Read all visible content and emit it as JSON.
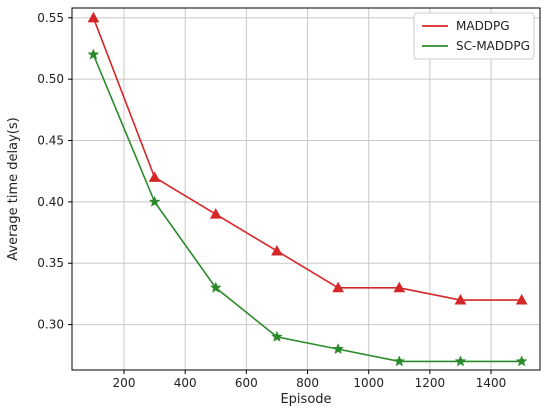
{
  "chart_data": {
    "type": "line",
    "xlabel": "Episode",
    "ylabel": "Average time delay(s)",
    "xlim": [
      30,
      1560
    ],
    "ylim": [
      0.263,
      0.558
    ],
    "xticks": [
      200,
      400,
      600,
      800,
      1000,
      1200,
      1400
    ],
    "yticks": [
      0.3,
      0.35,
      0.4,
      0.45,
      0.5,
      0.55
    ],
    "xtick_labels": [
      "200",
      "400",
      "600",
      "800",
      "1000",
      "1200",
      "1400"
    ],
    "ytick_labels": [
      "0.30",
      "0.35",
      "0.40",
      "0.45",
      "0.50",
      "0.55"
    ],
    "grid": true,
    "legend_position": "top-right",
    "x": [
      100,
      300,
      500,
      700,
      900,
      1100,
      1300,
      1500
    ],
    "series": [
      {
        "name": "MADDPG",
        "color": "#d62728",
        "marker": "triangle",
        "values": [
          0.55,
          0.42,
          0.39,
          0.36,
          0.33,
          0.33,
          0.32,
          0.32
        ]
      },
      {
        "name": "SC-MADDPG",
        "color": "#2a8a2a",
        "marker": "star",
        "values": [
          0.52,
          0.4,
          0.33,
          0.29,
          0.28,
          0.27,
          0.27,
          0.27
        ]
      }
    ]
  }
}
